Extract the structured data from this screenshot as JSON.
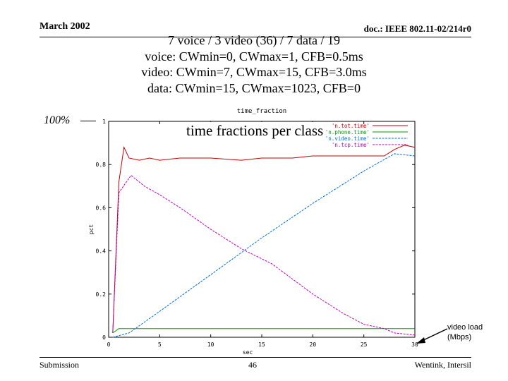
{
  "header": {
    "date": "March 2002",
    "doc_id": "doc.: IEEE 802.11-02/214r0"
  },
  "subtitle": {
    "line1": "7 voice / 3 video (36) / 7 data / 19",
    "line2": "voice: CWmin=0, CWmax=1, CFB=0.5ms",
    "line3": "video: CWmin=7, CWmax=15, CFB=3.0ms",
    "line4": "data: CWmin=15, CWmax=1023, CFB=0"
  },
  "annotations": {
    "percent_label": "100%",
    "overlay_title": "time fractions per class",
    "video_load_line1": "video load",
    "video_load_line2": "(Mbps)"
  },
  "footer": {
    "left": "Submission",
    "page": "46",
    "right": "Wentink, Intersil"
  },
  "chart_data": {
    "type": "line",
    "title": "time_fraction",
    "xlabel": "sec",
    "ylabel": "pct",
    "xlim": [
      0,
      30
    ],
    "ylim": [
      0,
      1
    ],
    "xticks": [
      "0",
      "5",
      "10",
      "15",
      "20",
      "25",
      "30"
    ],
    "yticks": [
      "0",
      "0.2",
      "0.4",
      "0.6",
      "0.8",
      "1"
    ],
    "grid": false,
    "legend_position": "top-right",
    "series": [
      {
        "name": "'n.tot.time'",
        "color": "#c00000",
        "x": [
          0.4,
          1.0,
          1.5,
          2.0,
          3.0,
          4.0,
          5.0,
          7.0,
          10.0,
          13.0,
          15.0,
          18.0,
          20.0,
          22.0,
          25.0,
          27.0,
          28.0,
          29.0,
          30.0
        ],
        "y": [
          0.02,
          0.72,
          0.88,
          0.83,
          0.82,
          0.83,
          0.82,
          0.83,
          0.83,
          0.82,
          0.83,
          0.83,
          0.84,
          0.84,
          0.84,
          0.84,
          0.87,
          0.89,
          0.88
        ]
      },
      {
        "name": "'n.phone.time'",
        "color": "#00a000",
        "x": [
          0.4,
          1.0,
          2.0,
          5.0,
          10.0,
          15.0,
          20.0,
          25.0,
          30.0
        ],
        "y": [
          0.02,
          0.04,
          0.04,
          0.04,
          0.04,
          0.04,
          0.04,
          0.04,
          0.04
        ]
      },
      {
        "name": "'n.video.time'",
        "color": "#0070e0",
        "x": [
          0.4,
          2.0,
          5.0,
          10.0,
          15.0,
          20.0,
          25.0,
          28.0,
          30.0
        ],
        "y": [
          0.0,
          0.02,
          0.12,
          0.29,
          0.46,
          0.62,
          0.77,
          0.85,
          0.84
        ]
      },
      {
        "name": "'n.tcp.time'",
        "color": "#c000c0",
        "x": [
          0.4,
          1.0,
          2.2,
          3.5,
          5.0,
          7.0,
          10.0,
          13.0,
          16.0,
          20.0,
          23.0,
          25.0,
          27.0,
          28.0,
          30.0
        ],
        "y": [
          0.02,
          0.67,
          0.75,
          0.7,
          0.66,
          0.6,
          0.5,
          0.41,
          0.34,
          0.2,
          0.11,
          0.06,
          0.04,
          0.02,
          0.01
        ]
      }
    ]
  }
}
